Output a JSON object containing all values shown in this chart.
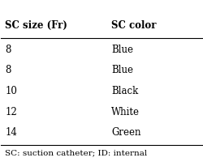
{
  "col1_header": "SC size (Fr)",
  "col2_header": "SC color",
  "rows": [
    [
      "8",
      "Blue"
    ],
    [
      "8",
      "Blue"
    ],
    [
      "10",
      "Black"
    ],
    [
      "12",
      "White"
    ],
    [
      "14",
      "Green"
    ]
  ],
  "footnote": "SC: suction catheter; ID: internal",
  "bg_color": "#ffffff",
  "header_line_color": "#000000",
  "font_size": 8.5,
  "header_font_size": 8.5,
  "footnote_font_size": 7.5
}
